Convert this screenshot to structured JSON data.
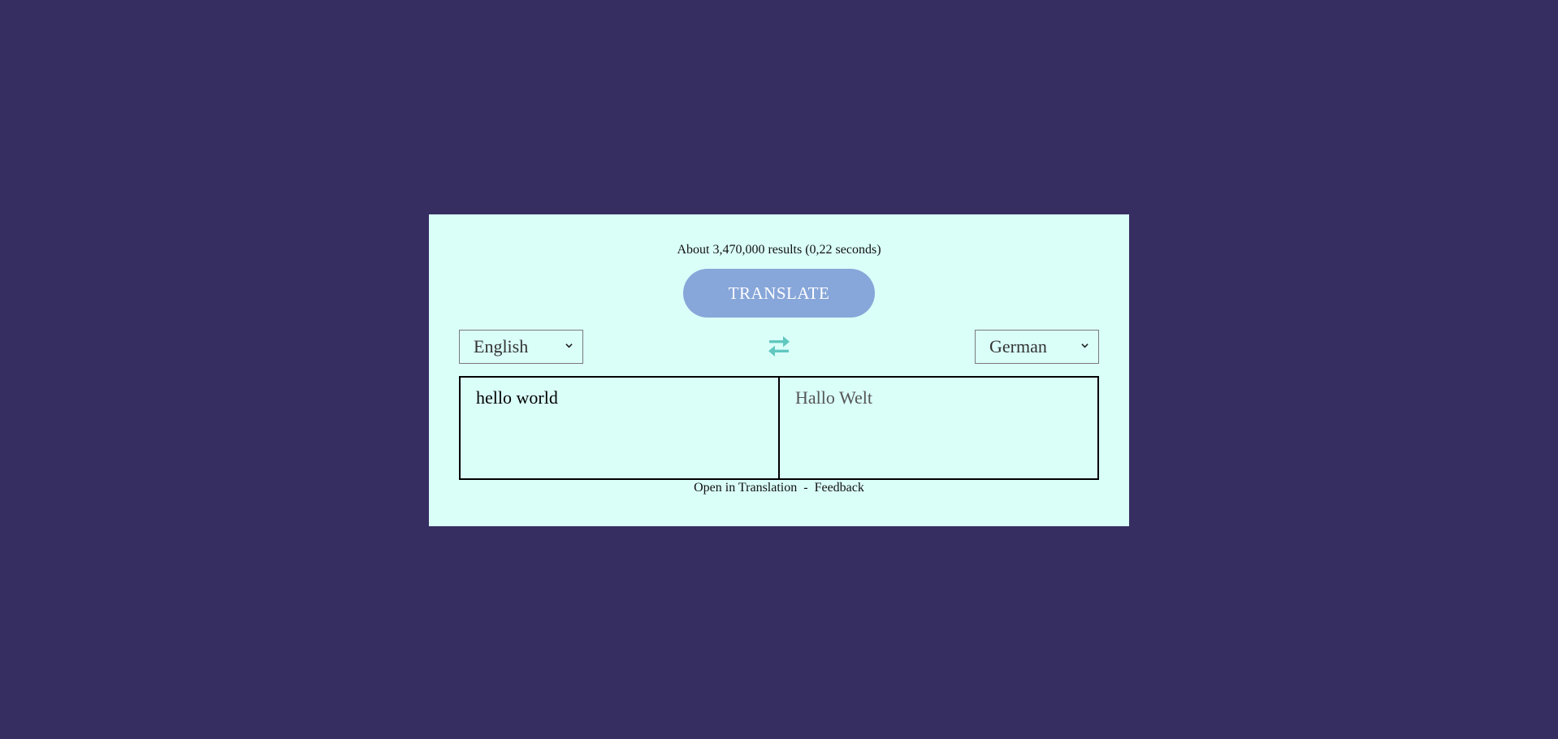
{
  "results": {
    "text": "About 3,470,000 results (0,22 seconds)"
  },
  "translate_button": {
    "label": "TRANSLATE"
  },
  "source_language": {
    "selected": "English"
  },
  "target_language": {
    "selected": "German"
  },
  "swap": {
    "icon": "swap-arrows-icon"
  },
  "source_text": {
    "value": "hello world"
  },
  "target_text": {
    "value": "Hallo Welt"
  },
  "footer": {
    "open_link": "Open in Translation",
    "separator": "-",
    "feedback_link": "Feedback"
  },
  "colors": {
    "background": "#362e60",
    "card": "#dafff9",
    "button": "#87a6d9",
    "swap_icon": "#5fc8c0"
  }
}
